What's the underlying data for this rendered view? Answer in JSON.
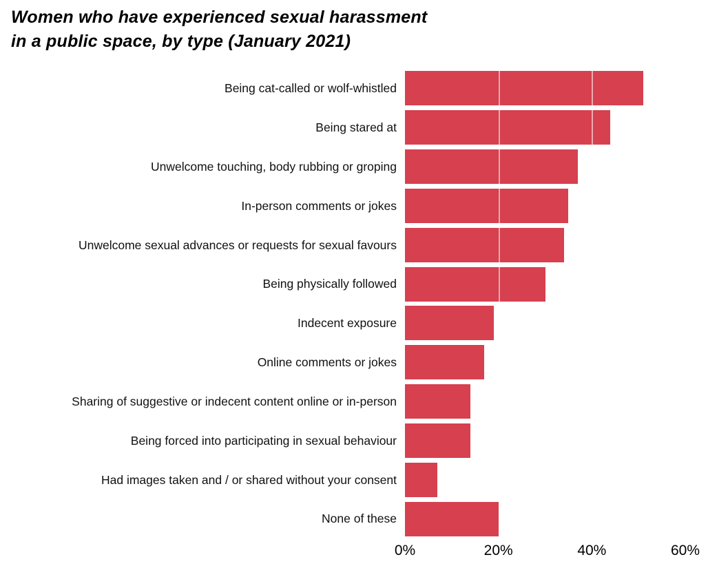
{
  "chart_data": {
    "type": "bar",
    "orientation": "horizontal",
    "title": "Women who have experienced sexual harassment in a public space, by type (January 2021)",
    "title_lines": [
      "Women who have experienced sexual harassment",
      "in a public space, by type (January 2021)"
    ],
    "categories": [
      "Being cat-called or wolf-whistled",
      "Being stared at",
      "Unwelcome touching, body rubbing or groping",
      "In-person comments or jokes",
      "Unwelcome sexual advances or requests for sexual favours",
      "Being physically followed",
      "Indecent exposure",
      "Online comments or jokes",
      "Sharing of suggestive or indecent content online or in-person",
      "Being forced into participating in sexual behaviour",
      "Had images taken and / or shared without your consent",
      "None of these"
    ],
    "values": [
      51,
      44,
      37,
      35,
      34,
      30,
      19,
      17,
      14,
      14,
      7,
      20
    ],
    "unit": "%",
    "xlabel": "",
    "ylabel": "",
    "xlim": [
      0,
      60
    ],
    "x_ticks": [
      "0%",
      "20%",
      "40%",
      "60%"
    ],
    "x_tick_values": [
      0,
      20,
      40,
      60
    ],
    "bar_color": "#d6404f",
    "background_color": "#ffffff",
    "grid": false,
    "legend_position": "none"
  }
}
